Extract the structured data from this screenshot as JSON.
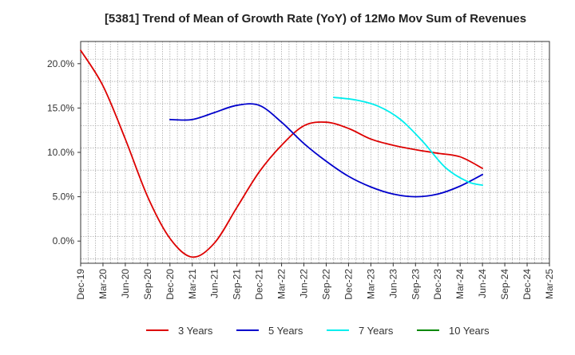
{
  "chart_data": {
    "type": "line",
    "title": "[5381]  Trend of Mean of Growth Rate (YoY) of 12Mo Mov Sum of Revenues",
    "xlabel": "",
    "ylabel": "",
    "ylim": [
      -2.5,
      22.5
    ],
    "yticks": [
      0,
      5,
      10,
      15,
      20
    ],
    "ytick_labels": [
      "0.0%",
      "5.0%",
      "10.0%",
      "15.0%",
      "20.0%"
    ],
    "xlim": [
      0,
      63
    ],
    "xtick_labels": [
      "Dec-19",
      "Mar-20",
      "Jun-20",
      "Sep-20",
      "Dec-20",
      "Mar-21",
      "Jun-21",
      "Sep-21",
      "Dec-21",
      "Mar-22",
      "Jun-22",
      "Sep-22",
      "Dec-22",
      "Mar-23",
      "Jun-23",
      "Sep-23",
      "Dec-23",
      "Mar-24",
      "Jun-24",
      "Sep-24",
      "Dec-24",
      "Mar-25"
    ],
    "grid": true,
    "legend_position": "bottom",
    "series": [
      {
        "name": "3 Years",
        "color": "#dd0000",
        "points": [
          [
            0,
            21.5
          ],
          [
            3,
            17.5
          ],
          [
            6,
            11.5
          ],
          [
            9,
            5.0
          ],
          [
            12,
            0.3
          ],
          [
            15,
            -1.8
          ],
          [
            18,
            -0.2
          ],
          [
            21,
            3.8
          ],
          [
            24,
            7.8
          ],
          [
            27,
            10.8
          ],
          [
            30,
            13.0
          ],
          [
            33,
            13.4
          ],
          [
            36,
            12.7
          ],
          [
            39,
            11.5
          ],
          [
            42,
            10.8
          ],
          [
            45,
            10.3
          ],
          [
            48,
            9.9
          ],
          [
            51,
            9.5
          ],
          [
            54,
            8.2
          ]
        ]
      },
      {
        "name": "5 Years",
        "color": "#0000cc",
        "points": [
          [
            12,
            13.7
          ],
          [
            15,
            13.7
          ],
          [
            18,
            14.5
          ],
          [
            21,
            15.3
          ],
          [
            24,
            15.3
          ],
          [
            27,
            13.4
          ],
          [
            30,
            11.0
          ],
          [
            33,
            9.0
          ],
          [
            36,
            7.3
          ],
          [
            39,
            6.1
          ],
          [
            42,
            5.3
          ],
          [
            45,
            5.0
          ],
          [
            48,
            5.3
          ],
          [
            51,
            6.2
          ],
          [
            54,
            7.5
          ]
        ]
      },
      {
        "name": "7 Years",
        "color": "#00eeee",
        "points": [
          [
            34,
            16.2
          ],
          [
            37,
            15.9
          ],
          [
            40,
            15.2
          ],
          [
            43,
            13.7
          ],
          [
            46,
            11.2
          ],
          [
            49,
            8.3
          ],
          [
            52,
            6.7
          ],
          [
            54,
            6.3
          ]
        ]
      },
      {
        "name": "10 Years",
        "color": "#008800",
        "points": []
      }
    ]
  }
}
